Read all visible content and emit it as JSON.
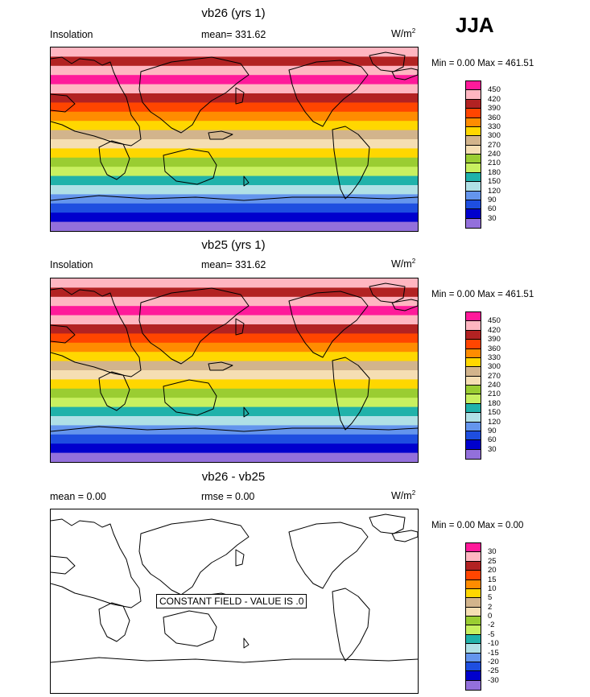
{
  "season": "JJA",
  "chart_data": [
    {
      "type": "heatmap",
      "title": "vb26 (yrs 1)",
      "left_label": "Insolation",
      "mean_text": "mean= 331.62",
      "units": "W/m",
      "units_sup": "2",
      "minmax_text": "Min =   0.00 Max = 461.51",
      "z_min": 0.0,
      "z_max": 461.51,
      "colorbar_levels": [
        "450",
        "420",
        "390",
        "360",
        "330",
        "300",
        "270",
        "240",
        "210",
        "180",
        "150",
        "120",
        "90",
        "60",
        "30"
      ],
      "colorbar_colors": [
        "#ff1a9a",
        "#ffb6c1",
        "#b22222",
        "#ff4500",
        "#ff8c00",
        "#ffd700",
        "#d2b48c",
        "#f5deb3",
        "#9acd32",
        "#c8f060",
        "#20b2aa",
        "#b0e0e6",
        "#6495ed",
        "#1e4ee0",
        "#0000cd",
        "#9370db"
      ],
      "band_colors_north_to_south": [
        "#ffb6c1",
        "#b22222",
        "#ffb6c1",
        "#ff1a9a",
        "#ffb6c1",
        "#b22222",
        "#ff4500",
        "#ff8c00",
        "#ffd700",
        "#d2b48c",
        "#f5deb3",
        "#ffd700",
        "#9acd32",
        "#c8f060",
        "#20b2aa",
        "#b0e0e6",
        "#6495ed",
        "#1e4ee0",
        "#0000cd",
        "#9370db"
      ]
    },
    {
      "type": "heatmap",
      "title": "vb25 (yrs 1)",
      "left_label": "Insolation",
      "mean_text": "mean= 331.62",
      "units": "W/m",
      "units_sup": "2",
      "minmax_text": "Min =   0.00 Max = 461.51",
      "z_min": 0.0,
      "z_max": 461.51,
      "colorbar_levels": [
        "450",
        "420",
        "390",
        "360",
        "330",
        "300",
        "270",
        "240",
        "210",
        "180",
        "150",
        "120",
        "90",
        "60",
        "30"
      ],
      "colorbar_colors": [
        "#ff1a9a",
        "#ffb6c1",
        "#b22222",
        "#ff4500",
        "#ff8c00",
        "#ffd700",
        "#d2b48c",
        "#f5deb3",
        "#9acd32",
        "#c8f060",
        "#20b2aa",
        "#b0e0e6",
        "#6495ed",
        "#1e4ee0",
        "#0000cd",
        "#9370db"
      ],
      "band_colors_north_to_south": [
        "#ffb6c1",
        "#b22222",
        "#ffb6c1",
        "#ff1a9a",
        "#ffb6c1",
        "#b22222",
        "#ff4500",
        "#ff8c00",
        "#ffd700",
        "#d2b48c",
        "#f5deb3",
        "#ffd700",
        "#9acd32",
        "#c8f060",
        "#20b2aa",
        "#b0e0e6",
        "#6495ed",
        "#1e4ee0",
        "#0000cd",
        "#9370db"
      ]
    },
    {
      "type": "heatmap",
      "title": "vb26 - vb25",
      "mean_text": "mean =   0.00",
      "rmse_text": "rmse =   0.00",
      "units": "W/m",
      "units_sup": "2",
      "minmax_text": "Min =   0.00 Max =   0.00",
      "z_min": 0.0,
      "z_max": 0.0,
      "annotation": "CONSTANT FIELD - VALUE IS .0",
      "colorbar_levels": [
        "30",
        "25",
        "20",
        "15",
        "10",
        "5",
        "2",
        "0",
        "-2",
        "-5",
        "-10",
        "-15",
        "-20",
        "-25",
        "-30"
      ],
      "colorbar_colors": [
        "#ff1a9a",
        "#ffb6c1",
        "#b22222",
        "#ff4500",
        "#ff8c00",
        "#ffd700",
        "#d2b48c",
        "#f5deb3",
        "#9acd32",
        "#c8f060",
        "#20b2aa",
        "#b0e0e6",
        "#6495ed",
        "#1e4ee0",
        "#0000cd",
        "#9370db"
      ]
    }
  ]
}
